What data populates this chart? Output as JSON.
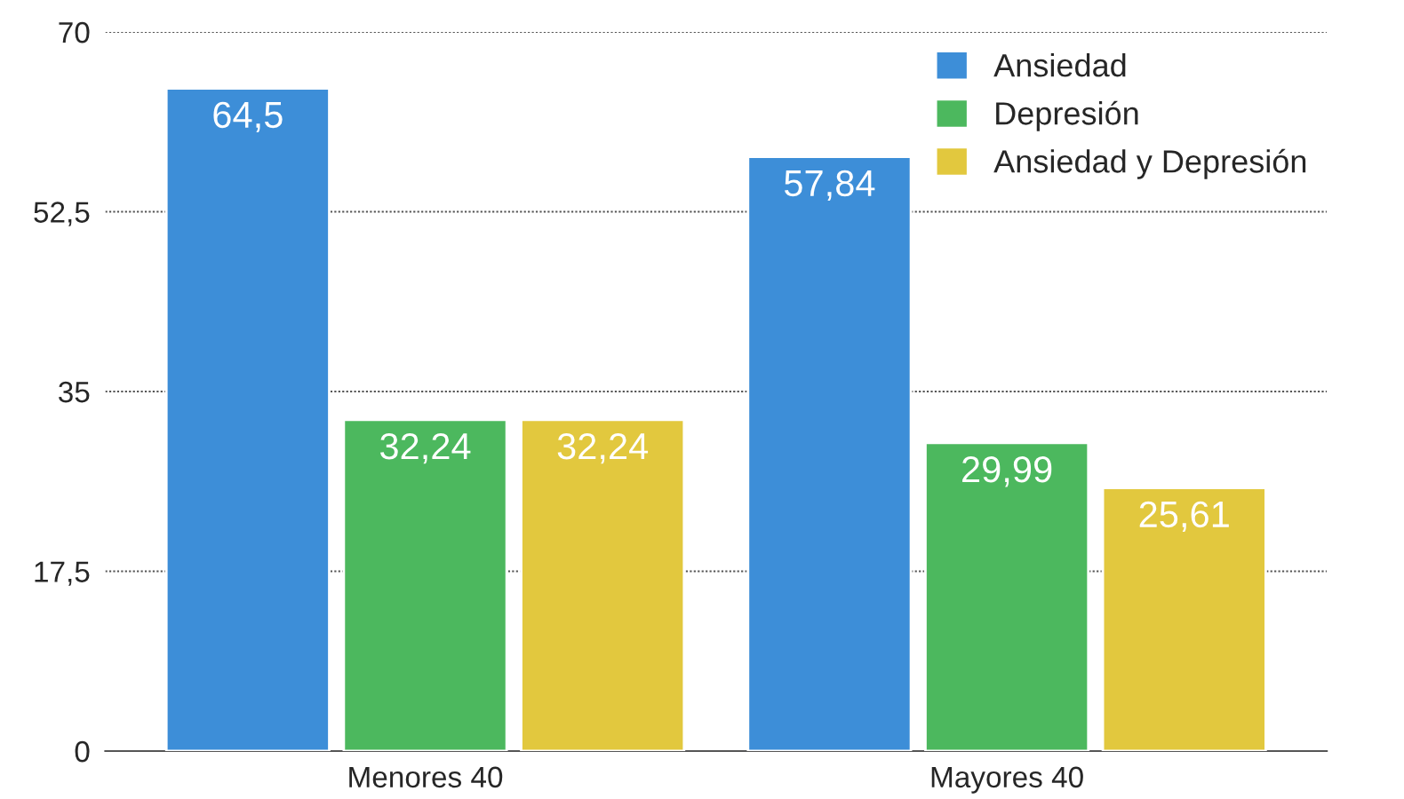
{
  "chart_data": {
    "type": "bar",
    "categories": [
      "Menores 40",
      "Mayores 40"
    ],
    "series": [
      {
        "name": "Ansiedad",
        "color": "#3d8ed8",
        "values": [
          64.5,
          57.84
        ],
        "value_labels": [
          "64,5",
          "57,84"
        ]
      },
      {
        "name": "Depresión",
        "color": "#4cb85e",
        "values": [
          32.24,
          29.99
        ],
        "value_labels": [
          "32,24",
          "29,99"
        ]
      },
      {
        "name": "Ansiedad y Depresión",
        "color": "#e2c83e",
        "values": [
          32.24,
          25.61
        ],
        "value_labels": [
          "32,24",
          "25,61"
        ]
      }
    ],
    "ylim": [
      0,
      70
    ],
    "yticks": [
      0,
      {
        "value": 17.5,
        "label": "17,5"
      },
      35,
      {
        "value": 52.5,
        "label": "52,5"
      },
      70
    ],
    "grid": "y",
    "legend": "top right"
  }
}
